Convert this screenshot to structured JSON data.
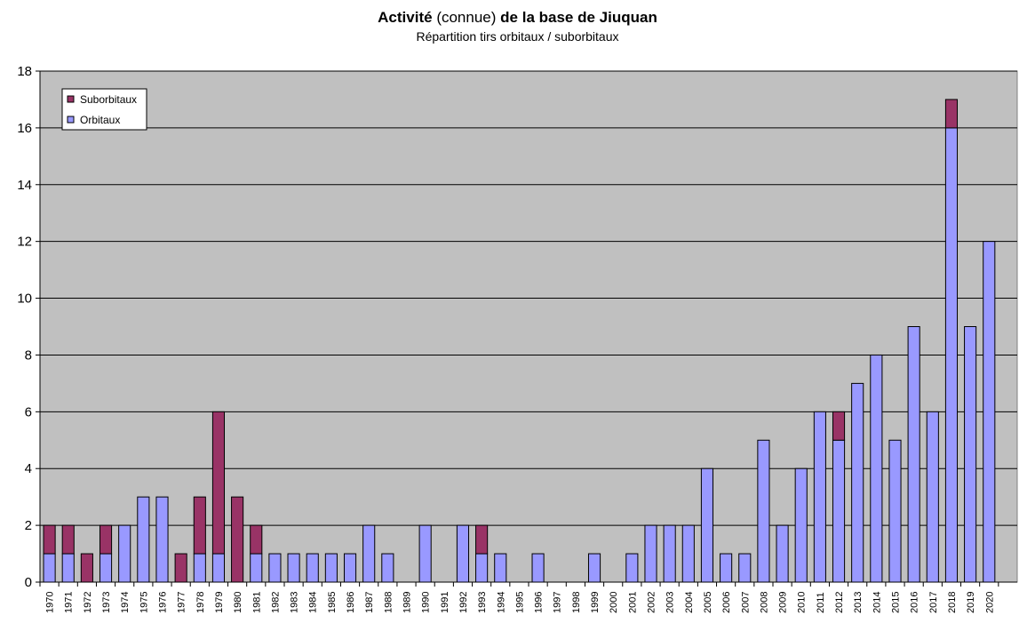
{
  "header": {
    "title_part1": "Activité",
    "title_part2": "(connue)",
    "title_part3": "de la base de Jiuquan",
    "subtitle": "Répartition tirs orbitaux / suborbitaux"
  },
  "chart_data": {
    "type": "bar",
    "stacked": true,
    "title": "Activité (connue) de la base de Jiuquan",
    "subtitle": "Répartition tirs orbitaux / suborbitaux",
    "xlabel": "",
    "ylabel": "",
    "ylim": [
      0,
      18
    ],
    "yticks": [
      0,
      2,
      4,
      6,
      8,
      10,
      12,
      14,
      16,
      18
    ],
    "grid": true,
    "legend_position": "top-left",
    "categories": [
      "1970",
      "1971",
      "1972",
      "1973",
      "1974",
      "1975",
      "1976",
      "1977",
      "1978",
      "1979",
      "1980",
      "1981",
      "1982",
      "1983",
      "1984",
      "1985",
      "1986",
      "1987",
      "1988",
      "1989",
      "1990",
      "1991",
      "1992",
      "1993",
      "1994",
      "1995",
      "1996",
      "1997",
      "1998",
      "1999",
      "2000",
      "2001",
      "2002",
      "2003",
      "2004",
      "2005",
      "2006",
      "2007",
      "2008",
      "2009",
      "2010",
      "2011",
      "2012",
      "2013",
      "2014",
      "2015",
      "2016",
      "2017",
      "2018",
      "2019",
      "2020"
    ],
    "series": [
      {
        "name": "Orbitaux",
        "color": "#9999ff",
        "values": [
          1,
          1,
          0,
          1,
          2,
          3,
          3,
          0,
          1,
          1,
          0,
          1,
          1,
          1,
          1,
          1,
          1,
          2,
          1,
          0,
          2,
          0,
          2,
          1,
          1,
          0,
          1,
          0,
          0,
          1,
          0,
          1,
          2,
          2,
          2,
          4,
          1,
          1,
          5,
          2,
          4,
          6,
          5,
          7,
          8,
          5,
          9,
          6,
          16,
          9,
          12
        ]
      },
      {
        "name": "Suborbitaux",
        "color": "#993366",
        "values": [
          1,
          1,
          1,
          1,
          0,
          0,
          0,
          1,
          2,
          5,
          3,
          1,
          0,
          0,
          0,
          0,
          0,
          0,
          0,
          0,
          0,
          0,
          0,
          1,
          0,
          0,
          0,
          0,
          0,
          0,
          0,
          0,
          0,
          0,
          0,
          0,
          0,
          0,
          0,
          0,
          0,
          0,
          1,
          0,
          0,
          0,
          0,
          0,
          1,
          0,
          0
        ]
      }
    ],
    "colors": {
      "plot_background": "#c0c0c0",
      "gridline": "#000000",
      "orbital": "#9999ff",
      "suborbital": "#993366"
    }
  }
}
